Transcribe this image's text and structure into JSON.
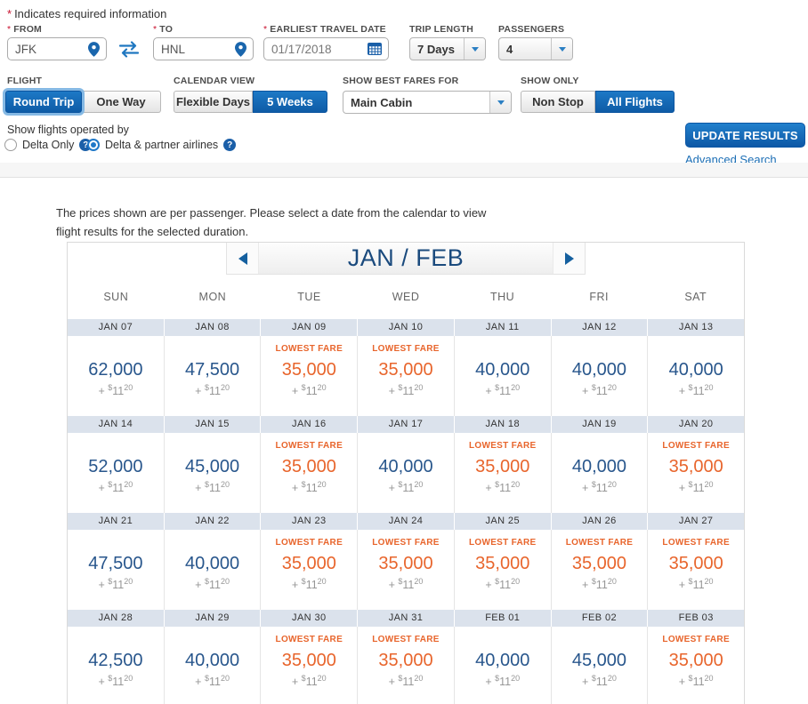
{
  "colors": {
    "accent_blue": "#1b75c0",
    "selected_button_blue": "#0e5ba6",
    "navy_title": "#1a4a7d",
    "fare_blue": "#28568c",
    "fare_orange": "#e8652c",
    "date_band": "#dbe2ec",
    "required_red": "#c8102e",
    "tax_gray": "#979797"
  },
  "search": {
    "required_marker": "*",
    "required_note": "Indicates required information",
    "fields": {
      "from": {
        "label": "FROM",
        "value": "JFK",
        "icon": "location-pin-icon"
      },
      "to": {
        "label": "TO",
        "value": "HNL",
        "icon": "location-pin-icon"
      },
      "date": {
        "label": "EARLIEST TRAVEL DATE",
        "value": "01/17/2018",
        "icon": "calendar-icon"
      },
      "trip_length": {
        "label": "TRIP LENGTH",
        "value": "7 Days"
      },
      "passengers": {
        "label": "PASSENGERS",
        "value": "4"
      }
    },
    "swap_icon": "swap-arrows-icon",
    "toggles": {
      "flight": {
        "label": "FLIGHT",
        "options": [
          "Round Trip",
          "One Way"
        ],
        "selected": "Round Trip"
      },
      "calendar_view": {
        "label": "CALENDAR VIEW",
        "options": [
          "Flexible Days",
          "5 Weeks"
        ],
        "selected": "5 Weeks"
      },
      "show_only": {
        "label": "SHOW ONLY",
        "options": [
          "Non Stop",
          "All Flights"
        ],
        "selected": "All Flights"
      }
    },
    "best_fares": {
      "label": "SHOW BEST FARES FOR",
      "value": "Main Cabin"
    },
    "operated_by": {
      "label": "Show flights operated by",
      "options": [
        {
          "label": "Delta Only",
          "selected": false,
          "help_icon": "question-icon"
        },
        {
          "label": "Delta & partner airlines",
          "selected": true,
          "help_icon": "question-icon"
        }
      ]
    },
    "update_button": "UPDATE RESULTS",
    "advanced_search": "Advanced Search"
  },
  "results": {
    "note": "The prices shown are per passenger. Please select a date from the calendar to view flight results for the selected duration."
  },
  "calendar": {
    "month_header": "JAN / FEB",
    "prev_icon": "chevron-left-icon",
    "next_icon": "chevron-right-icon",
    "day_headers": [
      "SUN",
      "MON",
      "TUE",
      "WED",
      "THU",
      "FRI",
      "SAT"
    ],
    "lowest_fare_label": "LOWEST FARE",
    "tax": {
      "plus": "+",
      "currency": "$",
      "dollars": "11",
      "cents": "20"
    },
    "weeks": [
      {
        "dates": [
          "JAN 07",
          "JAN 08",
          "JAN 09",
          "JAN 10",
          "JAN 11",
          "JAN 12",
          "JAN 13"
        ],
        "fares": [
          {
            "miles": "62,000",
            "lowest": false
          },
          {
            "miles": "47,500",
            "lowest": false
          },
          {
            "miles": "35,000",
            "lowest": true
          },
          {
            "miles": "35,000",
            "lowest": true
          },
          {
            "miles": "40,000",
            "lowest": false
          },
          {
            "miles": "40,000",
            "lowest": false
          },
          {
            "miles": "40,000",
            "lowest": false
          }
        ]
      },
      {
        "dates": [
          "JAN 14",
          "JAN 15",
          "JAN 16",
          "JAN 17",
          "JAN 18",
          "JAN 19",
          "JAN 20"
        ],
        "fares": [
          {
            "miles": "52,000",
            "lowest": false
          },
          {
            "miles": "45,000",
            "lowest": false
          },
          {
            "miles": "35,000",
            "lowest": true
          },
          {
            "miles": "40,000",
            "lowest": false
          },
          {
            "miles": "35,000",
            "lowest": true
          },
          {
            "miles": "40,000",
            "lowest": false
          },
          {
            "miles": "35,000",
            "lowest": true
          }
        ]
      },
      {
        "dates": [
          "JAN 21",
          "JAN 22",
          "JAN 23",
          "JAN 24",
          "JAN 25",
          "JAN 26",
          "JAN 27"
        ],
        "fares": [
          {
            "miles": "47,500",
            "lowest": false
          },
          {
            "miles": "40,000",
            "lowest": false
          },
          {
            "miles": "35,000",
            "lowest": true
          },
          {
            "miles": "35,000",
            "lowest": true
          },
          {
            "miles": "35,000",
            "lowest": true
          },
          {
            "miles": "35,000",
            "lowest": true
          },
          {
            "miles": "35,000",
            "lowest": true
          }
        ]
      },
      {
        "dates": [
          "JAN 28",
          "JAN 29",
          "JAN 30",
          "JAN 31",
          "FEB 01",
          "FEB 02",
          "FEB 03"
        ],
        "fares": [
          {
            "miles": "42,500",
            "lowest": false
          },
          {
            "miles": "40,000",
            "lowest": false
          },
          {
            "miles": "35,000",
            "lowest": true
          },
          {
            "miles": "35,000",
            "lowest": true
          },
          {
            "miles": "40,000",
            "lowest": false
          },
          {
            "miles": "45,000",
            "lowest": false
          },
          {
            "miles": "35,000",
            "lowest": true
          }
        ]
      }
    ]
  }
}
